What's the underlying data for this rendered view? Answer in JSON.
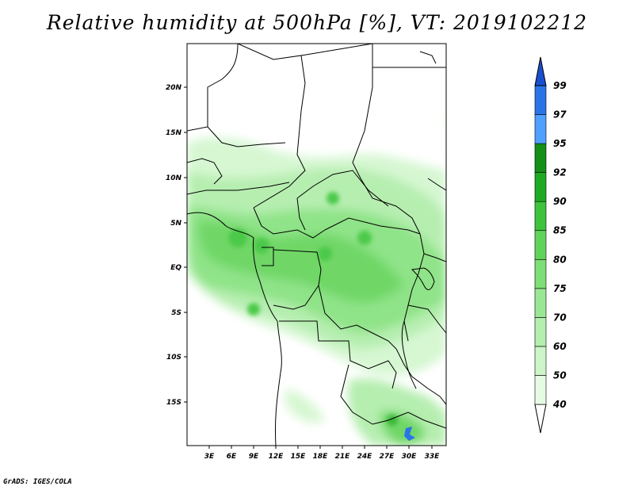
{
  "title": "Relative humidity at 500hPa [%], VT: 2019102212",
  "footer": "GrADS: IGES/COLA",
  "map": {
    "lon_labels": [
      "3E",
      "6E",
      "9E",
      "12E",
      "15E",
      "18E",
      "21E",
      "24E",
      "27E",
      "30E",
      "33E"
    ],
    "lat_labels": [
      "20N",
      "15N",
      "10N",
      "5N",
      "EQ",
      "5S",
      "10S",
      "15S"
    ]
  },
  "colorbar": {
    "levels": [
      "40",
      "50",
      "60",
      "70",
      "75",
      "80",
      "85",
      "90",
      "92",
      "95",
      "97",
      "99"
    ],
    "colors": [
      "#ffffff",
      "#e6fbe4",
      "#cdf5c9",
      "#b4eeae",
      "#9ae694",
      "#7ede77",
      "#60d45a",
      "#3fc23c",
      "#20aa23",
      "#148f17",
      "#4fa0ff",
      "#2a74e8",
      "#1a4fcf"
    ]
  }
}
